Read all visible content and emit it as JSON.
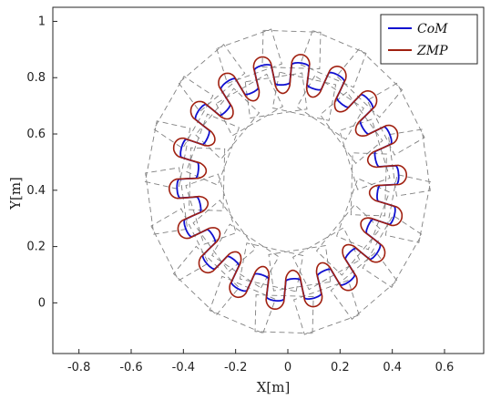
{
  "chart_data": {
    "type": "line",
    "title": "",
    "xlabel": "X[m]",
    "ylabel": "Y[m]",
    "xlim": [
      -0.9,
      0.75
    ],
    "ylim": [
      -0.18,
      1.05
    ],
    "xticks": [
      "-0.8",
      "-0.6",
      "-0.4",
      "-0.2",
      "0",
      "0.2",
      "0.4",
      "0.6"
    ],
    "xtick_values": [
      -0.8,
      -0.6,
      -0.4,
      -0.2,
      0,
      0.2,
      0.4,
      0.6
    ],
    "yticks": [
      "0",
      "0.2",
      "0.4",
      "0.6",
      "0.8",
      "1"
    ],
    "ytick_values": [
      0,
      0.2,
      0.4,
      0.6,
      0.8,
      1
    ],
    "grid": false,
    "legend_position": "top-right",
    "path": {
      "center": [
        0,
        0.43
      ],
      "radius": 0.385,
      "lobes": 18,
      "start_point": [
        0.06,
        0.02
      ]
    },
    "footsteps": {
      "count": 36,
      "foot_length": 0.22,
      "foot_width": 0.13,
      "inner_radius": 0.31,
      "outer_radius": 0.47
    },
    "series": [
      {
        "name": "CoM",
        "color": "#1010d0",
        "amplitude": 0.04
      },
      {
        "name": "ZMP",
        "color": "#a02010",
        "amplitude": 0.07
      }
    ],
    "footstep_color": "#808080"
  }
}
